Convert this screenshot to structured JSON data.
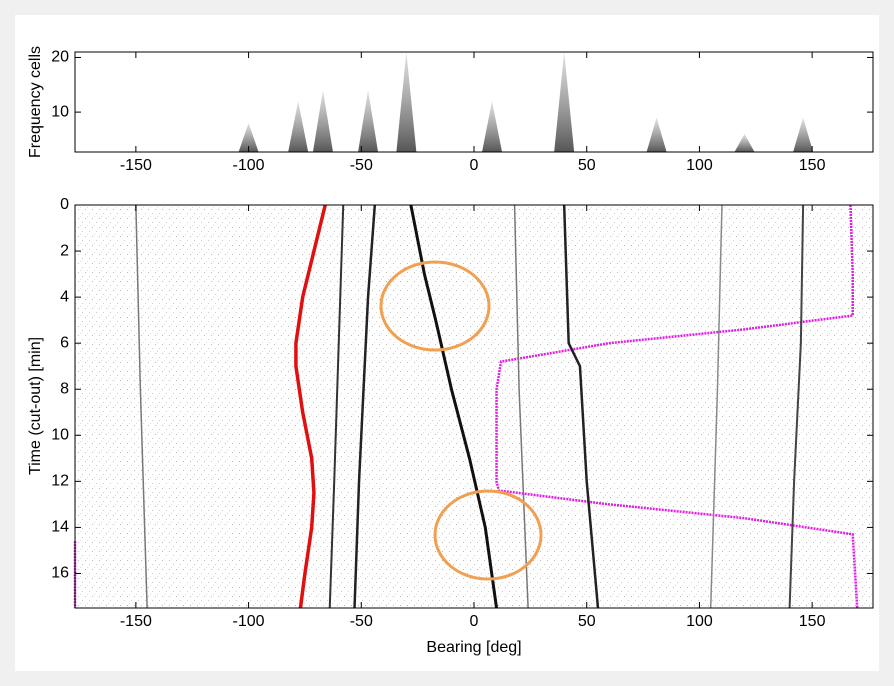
{
  "chart_data": [
    {
      "type": "spectrum",
      "y_label": "Frequency cells",
      "x": [
        -100,
        -78,
        -67,
        -47,
        -30,
        8,
        40,
        81,
        120,
        146
      ],
      "values": [
        8,
        12,
        14,
        14,
        21,
        12,
        21,
        9,
        6,
        9
      ],
      "color": "#222222",
      "xlim": [
        -177,
        177
      ],
      "xticks": [
        -150,
        -100,
        -50,
        0,
        50,
        100,
        150
      ],
      "ylim": [
        2.7,
        21
      ],
      "yticks": [
        10,
        20
      ]
    },
    {
      "type": "line",
      "x_label": "Bearing [deg]",
      "y_label": "Time (cut-out) [min]",
      "invert_y": true,
      "xlim": [
        -177,
        177
      ],
      "xticks": [
        -150,
        -100,
        -50,
        0,
        50,
        100,
        150
      ],
      "ylim": [
        0,
        17.5
      ],
      "yticks": [
        0,
        2,
        4,
        6,
        8,
        10,
        12,
        14,
        16
      ],
      "series": [
        {
          "color": "#e01010",
          "width": 3.5,
          "x": [
            -66,
            -71,
            -76,
            -79,
            -79,
            -76,
            -72,
            -71,
            -72,
            -75,
            -77
          ],
          "y": [
            0,
            2,
            4,
            6,
            7,
            9,
            11,
            12.5,
            14,
            16,
            17.5
          ]
        },
        {
          "color": "#e020e0",
          "width": 2.5,
          "x": [
            167,
            168,
            168,
            120,
            60,
            12,
            10,
            10,
            11,
            60,
            120,
            168,
            170,
            null,
            -177,
            -177
          ],
          "y": [
            0,
            3,
            4.8,
            5.4,
            6.0,
            6.8,
            8,
            12,
            12.4,
            13.0,
            13.6,
            14.3,
            17.5,
            null,
            14.6,
            17.5
          ]
        },
        {
          "color": "#111111",
          "width": 3,
          "x": [
            -28,
            -22,
            -17,
            -10,
            -2,
            5,
            10
          ],
          "y": [
            0,
            3,
            5,
            8,
            11,
            14,
            17.5
          ]
        },
        {
          "color": "#222222",
          "width": 2.5,
          "x": [
            -44,
            -47,
            -49,
            -51,
            -53
          ],
          "y": [
            0,
            4,
            8,
            12,
            17.5
          ]
        },
        {
          "color": "#333333",
          "width": 2,
          "x": [
            -58,
            -60,
            -62,
            -64
          ],
          "y": [
            0,
            6,
            12,
            17.5
          ]
        },
        {
          "color": "#222222",
          "width": 2.5,
          "x": [
            40,
            42,
            47,
            50,
            55
          ],
          "y": [
            0,
            6,
            7,
            12,
            17.5
          ]
        },
        {
          "color": "#444444",
          "width": 2,
          "x": [
            146,
            145,
            142,
            140
          ],
          "y": [
            0,
            6,
            12,
            17.5
          ]
        },
        {
          "color": "#777777",
          "width": 1.5,
          "x": [
            -150,
            -148,
            -145
          ],
          "y": [
            0,
            8,
            17.5
          ]
        },
        {
          "color": "#777777",
          "width": 1.5,
          "x": [
            18,
            20,
            24
          ],
          "y": [
            0,
            8,
            17.5
          ]
        },
        {
          "color": "#888888",
          "width": 1.5,
          "x": [
            110,
            108,
            105
          ],
          "y": [
            0,
            8,
            17.5
          ]
        }
      ]
    }
  ]
}
